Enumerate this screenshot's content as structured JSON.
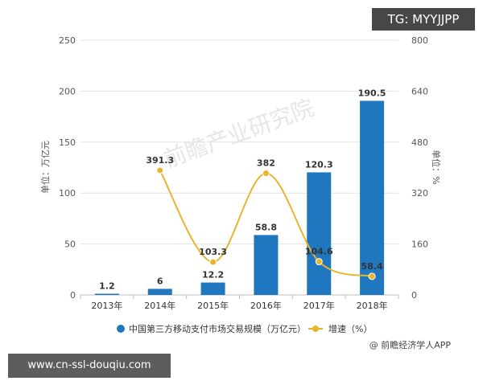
{
  "overlays": {
    "tag": "TG: MYYJJPP",
    "url": "www.cn-ssl-douqiu.com"
  },
  "watermark": "前瞻产业研究院",
  "source": "@ 前瞻经济学人APP",
  "chart_data": {
    "type": "bar",
    "categories": [
      "2013年",
      "2014年",
      "2015年",
      "2016年",
      "2017年",
      "2018年"
    ],
    "ylabel_left": "单位：万亿元",
    "ylabel_right": "单位：%",
    "ylim_left": [
      0,
      250
    ],
    "ylim_right": [
      0,
      800
    ],
    "yticks_left": [
      0,
      50,
      100,
      150,
      200,
      250
    ],
    "yticks_right": [
      0,
      160,
      320,
      480,
      640,
      800
    ],
    "grid": true,
    "legend_position": "bottom",
    "series": [
      {
        "name": "中国第三方移动支付市场交易规模（万亿元）",
        "type": "bar",
        "axis": "left",
        "color": "#1f77c0",
        "values": [
          1.2,
          6,
          12.2,
          58.8,
          120.3,
          190.5
        ],
        "labels": [
          "1.2",
          "6",
          "12.2",
          "58.8",
          "120.3",
          "190.5"
        ]
      },
      {
        "name": "增速（%）",
        "type": "line",
        "axis": "right",
        "color": "#e8b52a",
        "values": [
          null,
          391.3,
          103.3,
          382,
          104.6,
          58.4
        ],
        "labels": [
          "",
          "391.3",
          "103.3",
          "382",
          "104.6",
          "58.4"
        ]
      }
    ]
  }
}
